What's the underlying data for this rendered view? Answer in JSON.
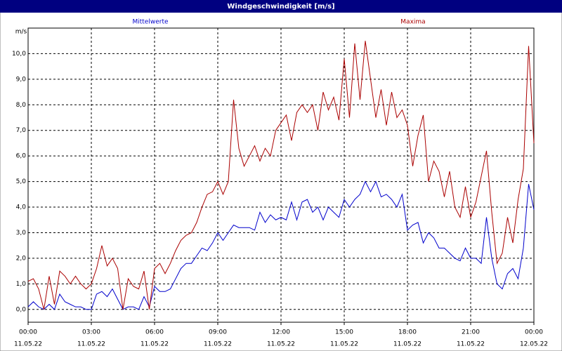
{
  "chart_data": {
    "type": "line",
    "title": "Windgeschwindigkeit [m/s]",
    "y_label": "m/s",
    "xlim": [
      0,
      24
    ],
    "ylim": [
      -0.5,
      11
    ],
    "grid": true,
    "x": [
      0,
      0.25,
      0.5,
      0.75,
      1,
      1.25,
      1.5,
      1.75,
      2,
      2.25,
      2.5,
      2.75,
      3,
      3.25,
      3.5,
      3.75,
      4,
      4.25,
      4.5,
      4.75,
      5,
      5.25,
      5.5,
      5.75,
      6,
      6.25,
      6.5,
      6.75,
      7,
      7.25,
      7.5,
      7.75,
      8,
      8.25,
      8.5,
      8.75,
      9,
      9.25,
      9.5,
      9.75,
      10,
      10.25,
      10.5,
      10.75,
      11,
      11.25,
      11.5,
      11.75,
      12,
      12.25,
      12.5,
      12.75,
      13,
      13.25,
      13.5,
      13.75,
      14,
      14.25,
      14.5,
      14.75,
      15,
      15.25,
      15.5,
      15.75,
      16,
      16.25,
      16.5,
      16.75,
      17,
      17.25,
      17.5,
      17.75,
      18,
      18.25,
      18.5,
      18.75,
      19,
      19.25,
      19.5,
      19.75,
      20,
      20.25,
      20.5,
      20.75,
      21,
      21.25,
      21.5,
      21.75,
      22,
      22.25,
      22.5,
      22.75,
      23,
      23.25,
      23.5,
      23.75,
      24
    ],
    "xticks": [
      {
        "value": 0,
        "label": "00:00",
        "date": "11.05.22"
      },
      {
        "value": 3,
        "label": "03:00",
        "date": "11.05.22"
      },
      {
        "value": 6,
        "label": "06:00",
        "date": "11.05.22"
      },
      {
        "value": 9,
        "label": "09:00",
        "date": "11.05.22"
      },
      {
        "value": 12,
        "label": "12:00",
        "date": "11.05.22"
      },
      {
        "value": 15,
        "label": "15:00",
        "date": "11.05.22"
      },
      {
        "value": 18,
        "label": "18:00",
        "date": "11.05.22"
      },
      {
        "value": 21,
        "label": "21:00",
        "date": "11.05.22"
      },
      {
        "value": 24,
        "label": "00:00",
        "date": "12.05.22"
      }
    ],
    "yticks": [
      {
        "value": 0,
        "label": "0,0"
      },
      {
        "value": 1,
        "label": "1,0"
      },
      {
        "value": 2,
        "label": "2,0"
      },
      {
        "value": 3,
        "label": "3,0"
      },
      {
        "value": 4,
        "label": "4,0"
      },
      {
        "value": 5,
        "label": "5,0"
      },
      {
        "value": 6,
        "label": "6,0"
      },
      {
        "value": 7,
        "label": "7,0"
      },
      {
        "value": 8,
        "label": "8,0"
      },
      {
        "value": 9,
        "label": "9,0"
      },
      {
        "value": 10,
        "label": "10,0"
      }
    ],
    "series": [
      {
        "name": "Mittelwerte",
        "color": "#0000cc",
        "values": [
          0.1,
          0.3,
          0.1,
          0.0,
          0.2,
          0.0,
          0.6,
          0.3,
          0.2,
          0.1,
          0.1,
          0.0,
          0.0,
          0.6,
          0.7,
          0.5,
          0.8,
          0.4,
          0.0,
          0.1,
          0.1,
          0.0,
          0.5,
          0.1,
          0.9,
          0.7,
          0.7,
          0.8,
          1.2,
          1.6,
          1.8,
          1.8,
          2.1,
          2.4,
          2.3,
          2.6,
          3.0,
          2.7,
          3.0,
          3.3,
          3.2,
          3.2,
          3.2,
          3.1,
          3.8,
          3.4,
          3.7,
          3.5,
          3.6,
          3.5,
          4.2,
          3.5,
          4.2,
          4.3,
          3.8,
          4.0,
          3.5,
          4.0,
          3.8,
          3.6,
          4.3,
          4.0,
          4.3,
          4.5,
          5.0,
          4.6,
          5.0,
          4.4,
          4.5,
          4.3,
          4.0,
          4.5,
          3.1,
          3.3,
          3.4,
          2.6,
          3.0,
          2.8,
          2.4,
          2.4,
          2.2,
          2.0,
          1.9,
          2.4,
          2.0,
          2.0,
          1.8,
          3.6,
          2.0,
          1.0,
          0.8,
          1.4,
          1.6,
          1.2,
          2.4,
          4.9,
          3.9
        ]
      },
      {
        "name": "Maxima",
        "color": "#aa0000",
        "values": [
          1.1,
          1.2,
          0.8,
          0.0,
          1.3,
          0.2,
          1.5,
          1.3,
          1.0,
          1.3,
          1.0,
          0.8,
          1.0,
          1.6,
          2.5,
          1.7,
          2.0,
          1.6,
          0.0,
          1.2,
          0.9,
          0.8,
          1.5,
          0.0,
          1.6,
          1.8,
          1.4,
          1.8,
          2.3,
          2.7,
          2.9,
          3.0,
          3.4,
          4.0,
          4.5,
          4.6,
          5.0,
          4.5,
          5.0,
          8.2,
          6.3,
          5.6,
          6.0,
          6.4,
          5.8,
          6.3,
          6.0,
          7.0,
          7.3,
          7.6,
          6.6,
          7.7,
          8.0,
          7.7,
          8.0,
          7.0,
          8.5,
          7.8,
          8.3,
          7.4,
          9.8,
          7.5,
          10.4,
          8.2,
          10.5,
          9.0,
          7.5,
          8.6,
          7.2,
          8.5,
          7.5,
          7.8,
          7.2,
          5.6,
          6.8,
          7.6,
          5.0,
          5.8,
          5.4,
          4.4,
          5.4,
          4.0,
          3.6,
          4.8,
          3.6,
          4.2,
          5.2,
          6.2,
          3.8,
          1.8,
          2.2,
          3.6,
          2.6,
          4.3,
          5.5,
          10.3,
          6.5
        ]
      }
    ]
  }
}
